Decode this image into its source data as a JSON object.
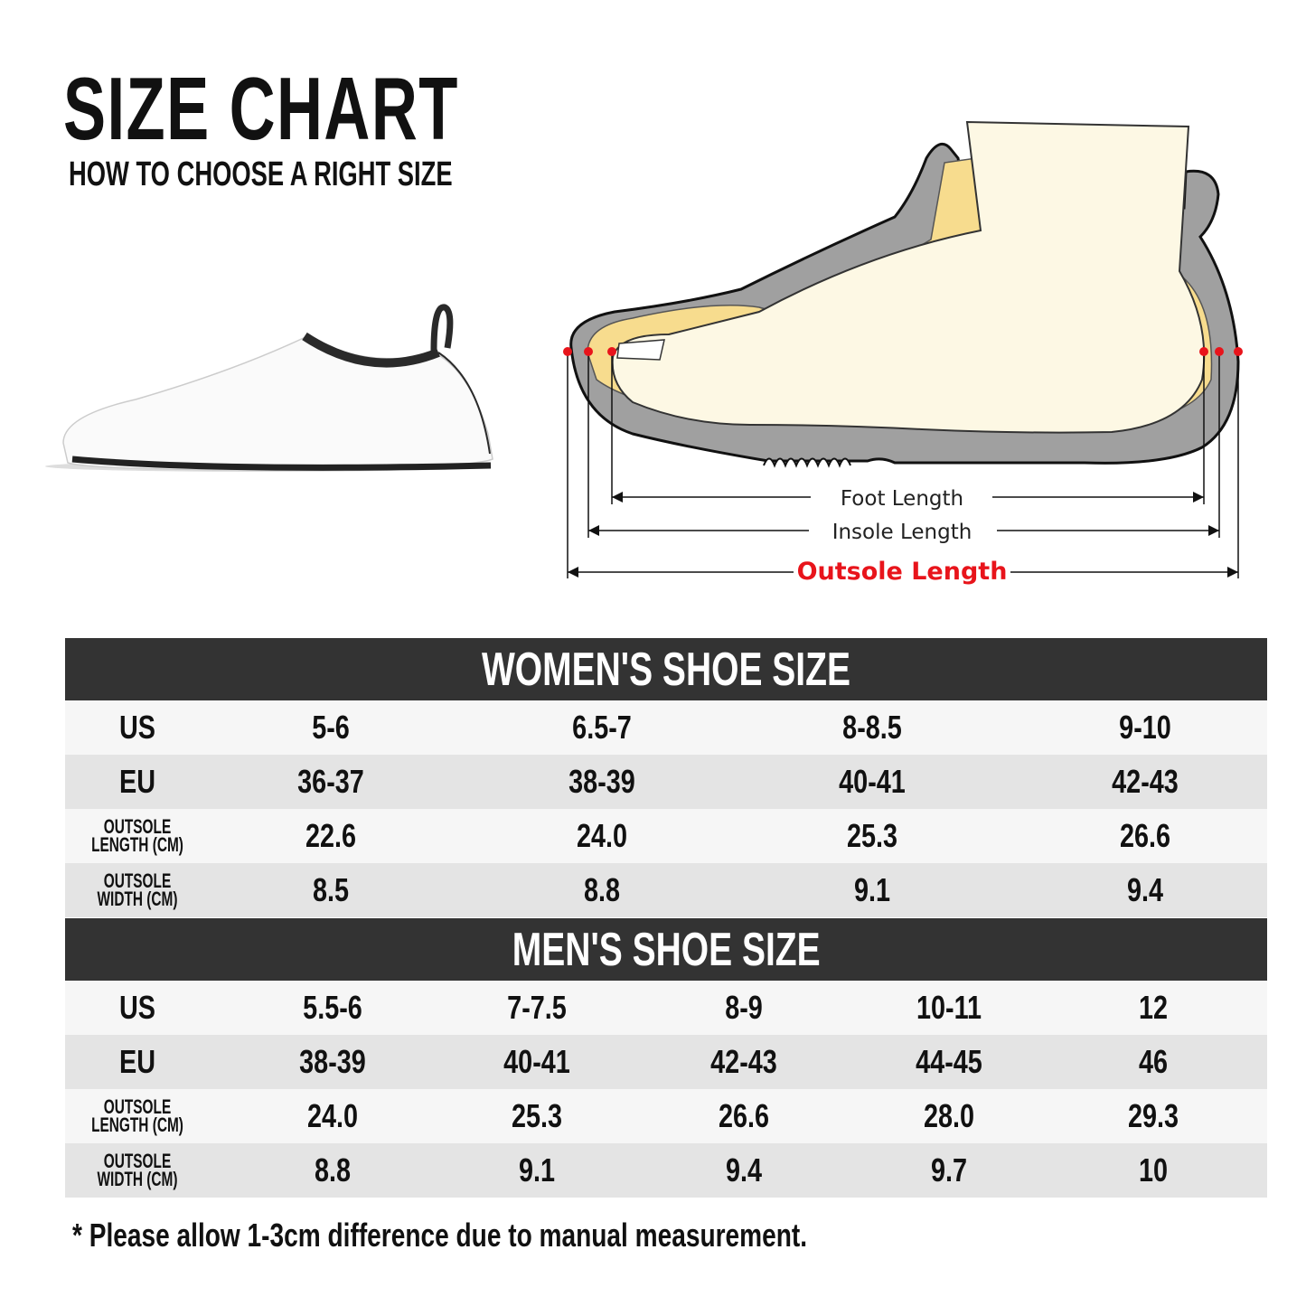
{
  "header": {
    "title": "SIZE CHART",
    "subtitle": "HOW TO CHOOSE A RIGHT SIZE"
  },
  "diagram": {
    "foot_length_label": "Foot Length",
    "insole_length_label": "Insole Length",
    "outsole_length_label": "Outsole Length",
    "accent_color": "#e8141b"
  },
  "women": {
    "title": "WOMEN'S SHOE SIZE",
    "rows": [
      {
        "label": "US",
        "values": [
          "5-6",
          "6.5-7",
          "8-8.5",
          "9-10"
        ]
      },
      {
        "label": "EU",
        "values": [
          "36-37",
          "38-39",
          "40-41",
          "42-43"
        ]
      },
      {
        "label": "OUTSOLE\nLENGTH (CM)",
        "values": [
          "22.6",
          "24.0",
          "25.3",
          "26.6"
        ]
      },
      {
        "label": "OUTSOLE\nWIDTH (CM)",
        "values": [
          "8.5",
          "8.8",
          "9.1",
          "9.4"
        ]
      }
    ]
  },
  "men": {
    "title": "MEN'S SHOE SIZE",
    "rows": [
      {
        "label": "US",
        "values": [
          "5.5-6",
          "7-7.5",
          "8-9",
          "10-11",
          "12"
        ]
      },
      {
        "label": "EU",
        "values": [
          "38-39",
          "40-41",
          "42-43",
          "44-45",
          "46"
        ]
      },
      {
        "label": "OUTSOLE\nLENGTH (CM)",
        "values": [
          "24.0",
          "25.3",
          "26.6",
          "28.0",
          "29.3"
        ]
      },
      {
        "label": "OUTSOLE\nWIDTH (CM)",
        "values": [
          "8.8",
          "9.1",
          "9.4",
          "9.7",
          "10"
        ]
      }
    ]
  },
  "footnote": "* Please allow 1-3cm difference due to manual measurement."
}
